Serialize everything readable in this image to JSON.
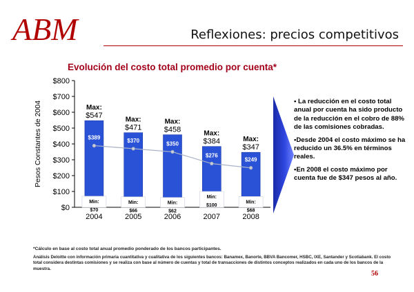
{
  "logo": {
    "text": "ABM",
    "color": "#b00000"
  },
  "header": {
    "title": "Reflexiones: precios competitivos"
  },
  "chart_title": "Evolución del costo total promedio por cuenta*",
  "chart_data": {
    "type": "bar",
    "categories": [
      "2004",
      "2005",
      "2006",
      "2007",
      "2008"
    ],
    "series": [
      {
        "values": [
          389,
          370,
          350,
          276,
          249
        ],
        "labels": [
          "$389",
          "$370",
          "$350",
          "$276",
          "$249"
        ]
      }
    ],
    "max_values": [
      547,
      471,
      458,
      384,
      347
    ],
    "max_labels": [
      "$547",
      "$471",
      "$458",
      "$384",
      "$347"
    ],
    "max_caption": "Max:",
    "min_values": [
      70,
      66,
      62,
      100,
      68
    ],
    "min_labels": [
      "$70",
      "$66",
      "$62",
      "$100",
      "$68"
    ],
    "min_caption": "Min:",
    "ylabel": "Pesos Constantes de 2004",
    "xlabel": "",
    "ylim": [
      0,
      800
    ],
    "yticks": [
      0,
      100,
      200,
      300,
      400,
      500,
      600,
      700,
      800
    ],
    "ytick_labels": [
      "$0",
      "$100",
      "$200",
      "$300",
      "$400",
      "$500",
      "$600",
      "$700",
      "$800"
    ],
    "grid": false,
    "colors": {
      "bar": "#2a52d6",
      "bar_edge": "#1b39a8",
      "line": "#a9b2c8",
      "marker": "#c7ccd9"
    }
  },
  "notes": [
    "• La reducción en el costo total anual por cuenta ha sido producto de la reducción en el cobro de 88% de las comisiones cobradas.",
    "•Desde 2004 el costo máximo se ha reducido un 36.5% en términos reales.",
    "•En 2008 el costo máximo por cuenta fue de $347 pesos al año."
  ],
  "footnote": "*Cálculo en base al costo total anual promedio ponderado de los bancos participantes.",
  "analysis": "Análisis Deloitte con información primaria cuantitativa y cualitativa de los siguientes bancos: Banamex, Banorte, BBVA Bancomer, HSBC, IXE, Santander y Scotiabank. El costo total considera destintas comisiones y se realiza con base al número de cuentas y total de transacciones de distintos conceptos realizados en cada uno de los bancos de la muestra.",
  "page_number": "56"
}
